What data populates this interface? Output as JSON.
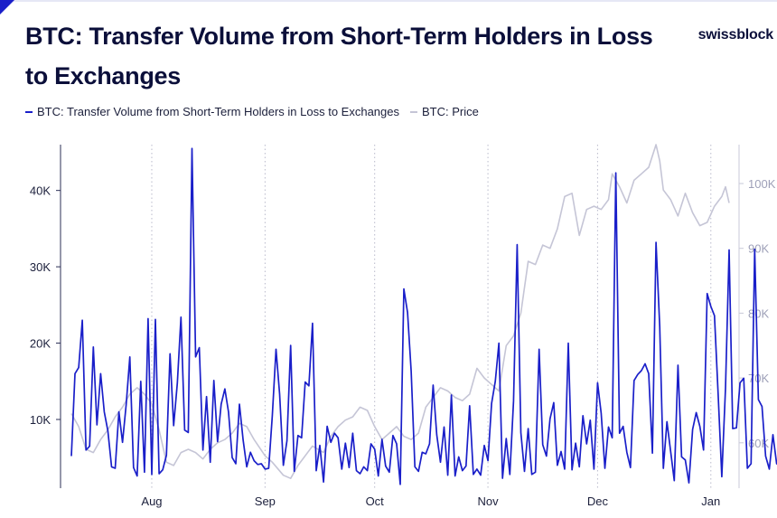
{
  "header": {
    "title": "BTC: Transfer Volume from Short-Term Holders in Loss to Exchanges",
    "brand": "swissblock"
  },
  "colors": {
    "accent": "#1a1fc9",
    "price_line": "#c5c5d6",
    "text": "#0b0f3a",
    "tick_left": "#1b1f3b",
    "tick_right": "#9ea0b8"
  },
  "chart_data": {
    "type": "line",
    "title": "BTC: Transfer Volume from Short-Term Holders in Loss to Exchanges",
    "legend_placement": "top-left",
    "grid": "vertical dotted lines at month starts",
    "x_labels": [
      "Aug",
      "Sep",
      "Oct",
      "Nov",
      "Dec",
      "Jan"
    ],
    "x_range": [
      "2024-07-10",
      "2025-01-06"
    ],
    "y_left": {
      "ticks": [
        10000,
        20000,
        30000,
        40000
      ],
      "tick_labels": [
        "10K",
        "20K",
        "30K",
        "40K"
      ],
      "range": [
        1000,
        46000
      ]
    },
    "y_right": {
      "ticks": [
        60000,
        70000,
        80000,
        90000,
        100000
      ],
      "tick_labels": [
        "60K",
        "70K",
        "80K",
        "90K",
        "100K"
      ],
      "range": [
        53000,
        106000
      ]
    },
    "series": [
      {
        "name": "BTC: Transfer Volume from Short-Term Holders in Loss to Exchanges",
        "axis": "left",
        "color": "#1a1fc9",
        "start_date": "2024-07-10",
        "values": [
          5200,
          16000,
          16800,
          23000,
          6000,
          6500,
          19500,
          9300,
          16000,
          11000,
          8500,
          3800,
          3600,
          11000,
          7000,
          12000,
          18200,
          3700,
          2600,
          15000,
          3100,
          23200,
          2800,
          23100,
          2900,
          3400,
          5300,
          18600,
          9200,
          14800,
          23400,
          8600,
          8300,
          45500,
          18200,
          19400,
          6000,
          13000,
          4400,
          15100,
          7100,
          12000,
          14000,
          11000,
          5000,
          4200,
          12000,
          7300,
          3800,
          5700,
          4600,
          4100,
          4200,
          3500,
          3600,
          10500,
          19200,
          13300,
          4000,
          7200,
          19700,
          3200,
          7900,
          7600,
          14900,
          14400,
          22600,
          3300,
          6600,
          1800,
          9100,
          7000,
          8200,
          7600,
          3500,
          6900,
          3700,
          8200,
          3300,
          2900,
          3800,
          3300,
          6800,
          6100,
          2600,
          7400,
          3900,
          3100,
          7900,
          6800,
          1500,
          27100,
          24000,
          16300,
          3800,
          3200,
          5700,
          5500,
          6800,
          14500,
          8000,
          4400,
          9000,
          2700,
          13200,
          2600,
          5100,
          3300,
          3900,
          11800,
          2800,
          3500,
          2700,
          6600,
          4600,
          12100,
          15000,
          20000,
          2300,
          7500,
          2800,
          12400,
          32900,
          8300,
          3200,
          8800,
          2800,
          3100,
          19200,
          6700,
          5200,
          10100,
          12200,
          4000,
          5800,
          3500,
          20000,
          3400,
          6900,
          3800,
          10500,
          6800,
          9900,
          3500,
          14800,
          10800,
          3600,
          9000,
          7600,
          42300,
          8200,
          9100,
          5700,
          3700,
          15100,
          15900,
          16400,
          17300,
          16000,
          5600,
          33200,
          22200,
          3600,
          9700,
          5800,
          2000,
          17100,
          5100,
          4700,
          1700,
          8700,
          10900,
          9100,
          6000,
          26500,
          24800,
          23600,
          13200,
          2500,
          14100,
          32200,
          8800,
          8900,
          14800,
          15400,
          3600,
          4200,
          32300,
          12600,
          11700,
          5200,
          3500,
          8000,
          4200,
          4000,
          5000,
          20200
        ]
      },
      {
        "name": "BTC: Price",
        "axis": "right",
        "color": "#c5c5d6",
        "points": [
          [
            "2024-07-10",
            64500
          ],
          [
            "2024-07-12",
            62500
          ],
          [
            "2024-07-14",
            59000
          ],
          [
            "2024-07-16",
            58500
          ],
          [
            "2024-07-18",
            60500
          ],
          [
            "2024-07-20",
            62000
          ],
          [
            "2024-07-22",
            64000
          ],
          [
            "2024-07-24",
            65500
          ],
          [
            "2024-07-26",
            67500
          ],
          [
            "2024-07-28",
            68500
          ],
          [
            "2024-07-30",
            67500
          ],
          [
            "2024-08-01",
            66000
          ],
          [
            "2024-08-03",
            62000
          ],
          [
            "2024-08-05",
            57000
          ],
          [
            "2024-08-07",
            56500
          ],
          [
            "2024-08-09",
            58500
          ],
          [
            "2024-08-11",
            59000
          ],
          [
            "2024-08-13",
            58500
          ],
          [
            "2024-08-15",
            57500
          ],
          [
            "2024-08-17",
            59000
          ],
          [
            "2024-08-19",
            60000
          ],
          [
            "2024-08-21",
            60500
          ],
          [
            "2024-08-23",
            61500
          ],
          [
            "2024-08-25",
            63000
          ],
          [
            "2024-08-27",
            62500
          ],
          [
            "2024-08-29",
            60500
          ],
          [
            "2024-09-01",
            58000
          ],
          [
            "2024-09-03",
            57000
          ],
          [
            "2024-09-06",
            55000
          ],
          [
            "2024-09-08",
            54500
          ],
          [
            "2024-09-10",
            56500
          ],
          [
            "2024-09-12",
            58000
          ],
          [
            "2024-09-14",
            59500
          ],
          [
            "2024-09-17",
            58500
          ],
          [
            "2024-09-19",
            61000
          ],
          [
            "2024-09-21",
            62500
          ],
          [
            "2024-09-23",
            63500
          ],
          [
            "2024-09-25",
            64000
          ],
          [
            "2024-09-27",
            65500
          ],
          [
            "2024-09-29",
            65000
          ],
          [
            "2024-10-01",
            62500
          ],
          [
            "2024-10-03",
            60500
          ],
          [
            "2024-10-05",
            61500
          ],
          [
            "2024-10-07",
            62500
          ],
          [
            "2024-10-09",
            61000
          ],
          [
            "2024-10-11",
            60500
          ],
          [
            "2024-10-13",
            61500
          ],
          [
            "2024-10-15",
            65500
          ],
          [
            "2024-10-17",
            67000
          ],
          [
            "2024-10-19",
            68500
          ],
          [
            "2024-10-21",
            68000
          ],
          [
            "2024-10-23",
            67000
          ],
          [
            "2024-10-25",
            66500
          ],
          [
            "2024-10-27",
            67500
          ],
          [
            "2024-10-29",
            71500
          ],
          [
            "2024-10-31",
            70000
          ],
          [
            "2024-11-02",
            69000
          ],
          [
            "2024-11-04",
            68000
          ],
          [
            "2024-11-06",
            75000
          ],
          [
            "2024-11-08",
            76500
          ],
          [
            "2024-11-10",
            80000
          ],
          [
            "2024-11-12",
            88000
          ],
          [
            "2024-11-14",
            87500
          ],
          [
            "2024-11-16",
            90500
          ],
          [
            "2024-11-18",
            90000
          ],
          [
            "2024-11-20",
            93000
          ],
          [
            "2024-11-22",
            98000
          ],
          [
            "2024-11-24",
            98500
          ],
          [
            "2024-11-26",
            92000
          ],
          [
            "2024-11-28",
            96000
          ],
          [
            "2024-11-30",
            96500
          ],
          [
            "2024-12-02",
            96000
          ],
          [
            "2024-12-04",
            97500
          ],
          [
            "2024-12-05",
            101500
          ],
          [
            "2024-12-07",
            99500
          ],
          [
            "2024-12-09",
            97000
          ],
          [
            "2024-12-11",
            100500
          ],
          [
            "2024-12-13",
            101500
          ],
          [
            "2024-12-15",
            102500
          ],
          [
            "2024-12-17",
            106000
          ],
          [
            "2024-12-18",
            103500
          ],
          [
            "2024-12-19",
            99000
          ],
          [
            "2024-12-21",
            97500
          ],
          [
            "2024-12-23",
            95000
          ],
          [
            "2024-12-25",
            98500
          ],
          [
            "2024-12-27",
            95500
          ],
          [
            "2024-12-29",
            93500
          ],
          [
            "2024-12-31",
            94000
          ],
          [
            "2025-01-02",
            96500
          ],
          [
            "2025-01-04",
            98000
          ],
          [
            "2025-01-05",
            99500
          ],
          [
            "2025-01-06",
            97000
          ]
        ]
      }
    ]
  }
}
